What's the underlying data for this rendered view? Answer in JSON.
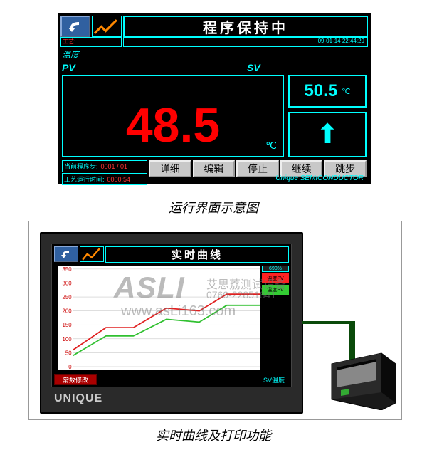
{
  "panel1": {
    "title": "程序保持中",
    "sub_left": "工艺:",
    "timestamp": "09-01-14  22:44:29",
    "temp_label": "温度",
    "pv_label": "PV",
    "sv_label": "SV",
    "pv_value": "48.5",
    "pv_unit": "℃",
    "sv_value": "50.5",
    "sv_unit": "℃",
    "status1_label": "当前程序步:",
    "status1_value": "0001 / 01",
    "status2_label": "工艺运行时间:",
    "status2_value": "0000:54",
    "buttons": [
      "详细",
      "编辑",
      "停止",
      "继续",
      "跳步"
    ],
    "brand": "Unique SEMICONDUCTOR"
  },
  "caption1": "运行界面示意图",
  "panel2": {
    "title": "实时曲线",
    "y_ticks": [
      350,
      300,
      250,
      200,
      150,
      100,
      50,
      0
    ],
    "series": {
      "red": {
        "color": "#e02020",
        "label": "温度PV",
        "points": [
          [
            0,
            60
          ],
          [
            60,
            140
          ],
          [
            110,
            140
          ],
          [
            170,
            210
          ],
          [
            230,
            200
          ],
          [
            280,
            260
          ],
          [
            340,
            260
          ]
        ]
      },
      "green": {
        "color": "#30c030",
        "label": "温度SV",
        "points": [
          [
            0,
            40
          ],
          [
            60,
            110
          ],
          [
            110,
            110
          ],
          [
            170,
            170
          ],
          [
            230,
            160
          ],
          [
            280,
            220
          ],
          [
            340,
            220
          ]
        ]
      }
    },
    "legend_header": "690%",
    "bottom_button": "常数修改",
    "bottom_label": "SV温度",
    "brand": "UNIQUE"
  },
  "caption2": "实时曲线及打印功能",
  "watermark": {
    "logo": "ASLI",
    "cn": "艾思荔测试设备",
    "tel": "0769-22851841",
    "url": "www.asLi163.com"
  },
  "colors": {
    "cyan": "#00ffff",
    "red": "#ff0000",
    "bg": "#000000"
  }
}
